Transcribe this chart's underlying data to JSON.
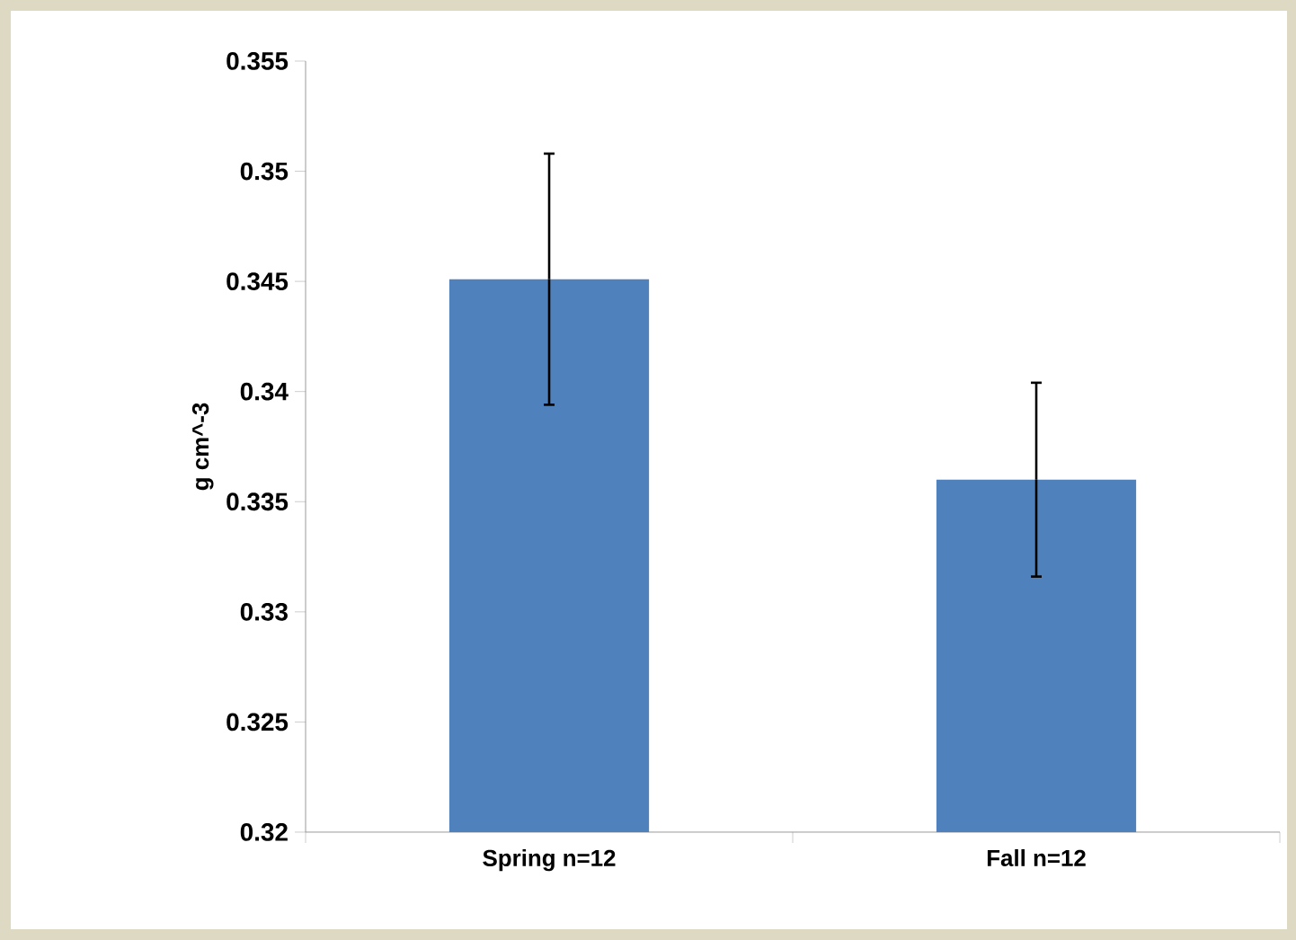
{
  "chart_data": {
    "type": "bar",
    "ylabel": "g cm^-3",
    "categories": [
      "Spring n=12",
      "Fall n=12"
    ],
    "values": [
      0.3451,
      0.336
    ],
    "errors": [
      0.0057,
      0.0044
    ],
    "color": "#4f81bd",
    "ylim": [
      0.32,
      0.355
    ],
    "yticks": [
      0.32,
      0.325,
      0.33,
      0.335,
      0.34,
      0.345,
      0.35,
      0.355
    ]
  }
}
